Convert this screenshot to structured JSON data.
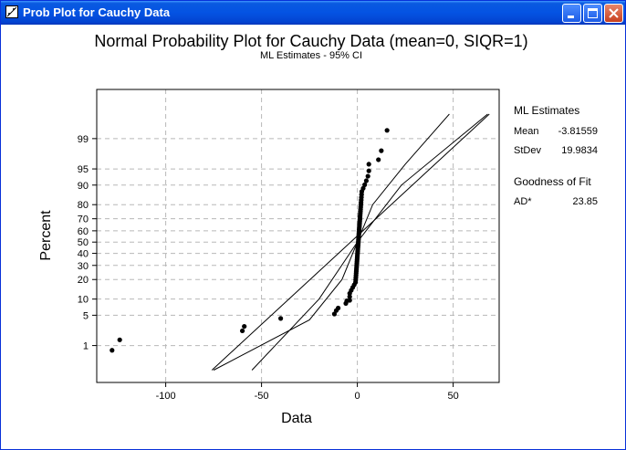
{
  "window": {
    "title": "Prob Plot for Cauchy Data"
  },
  "icons": {
    "app": "probability-plot-icon",
    "minimize": "minimize-icon",
    "maximize": "maximize-icon",
    "close": "close-icon"
  },
  "chart_data": {
    "type": "scatter",
    "title": "Normal Probability Plot for Cauchy Data (mean=0, SIQR=1)",
    "subtitle": "ML Estimates - 95% CI",
    "xlabel": "Data",
    "ylabel": "Percent",
    "xlim": [
      -136,
      74
    ],
    "x_ticks": [
      -100,
      -50,
      0,
      50
    ],
    "x_tick_labels": [
      "-100",
      "-50",
      "0",
      "50"
    ],
    "y_scale": "normal-probability",
    "ylim_percent": [
      0.08,
      99.97
    ],
    "y_ticks": [
      1,
      5,
      10,
      20,
      30,
      40,
      50,
      60,
      70,
      80,
      90,
      95,
      99
    ],
    "y_tick_labels": [
      "1",
      "5",
      "10",
      "20",
      "30",
      "40",
      "50",
      "60",
      "70",
      "80",
      "90",
      "95",
      "99"
    ],
    "grid": true,
    "points_percent_tail": [
      {
        "x": -128,
        "y": 0.75
      },
      {
        "x": -124,
        "y": 1.4
      },
      {
        "x": -60,
        "y": 2.3
      },
      {
        "x": -59,
        "y": 2.9
      },
      {
        "x": -40,
        "y": 4.3
      },
      {
        "x": -12,
        "y": 5.3
      },
      {
        "x": -11,
        "y": 6.2
      },
      {
        "x": -10,
        "y": 6.9
      },
      {
        "x": -6,
        "y": 8.4
      },
      {
        "x": -5.5,
        "y": 9.3
      },
      {
        "x": 11,
        "y": 96.8
      },
      {
        "x": 12.5,
        "y": 98.0
      },
      {
        "x": 15.5,
        "y": 99.4
      }
    ],
    "central_cluster": {
      "x_min": -4,
      "x_max": 6,
      "percent_min": 9.5,
      "percent_max": 96
    },
    "fit_line": {
      "x_at_p1": -62,
      "x_at_p99": 55
    },
    "ci_band": {
      "lower": [
        {
          "x": -75,
          "y": 0.2
        },
        {
          "x": -25,
          "y": 4
        },
        {
          "x": -8,
          "y": 20
        },
        {
          "x": 0,
          "y": 50
        },
        {
          "x": 23,
          "y": 90
        },
        {
          "x": 68,
          "y": 99.8
        }
      ],
      "upper": [
        {
          "x": -55,
          "y": 0.2
        },
        {
          "x": -20,
          "y": 10
        },
        {
          "x": 0,
          "y": 50
        },
        {
          "x": 8,
          "y": 80
        },
        {
          "x": 25,
          "y": 96
        },
        {
          "x": 48,
          "y": 99.8
        }
      ]
    },
    "stats_panel": {
      "heading": "ML Estimates",
      "rows": [
        {
          "label": "Mean",
          "value": "-3.81559"
        },
        {
          "label": "StDev",
          "value": "19.9834"
        }
      ],
      "gof_heading": "Goodness of Fit",
      "gof_rows": [
        {
          "label": "AD*",
          "value": "23.85"
        }
      ]
    }
  }
}
